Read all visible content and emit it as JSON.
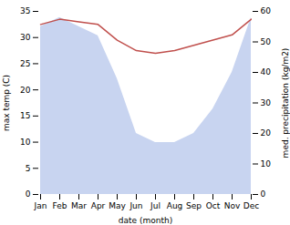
{
  "chart_data": {
    "type": "line",
    "xlabel": "date (month)",
    "ylabel": "max temp (C)",
    "y2label": "med. precipitation (kg/m2)",
    "categories": [
      "Jan",
      "Feb",
      "Mar",
      "Apr",
      "May",
      "Jun",
      "Jul",
      "Aug",
      "Sep",
      "Oct",
      "Nov",
      "Dec"
    ],
    "series": [
      {
        "type": "area",
        "axis": "y2",
        "color": "#c8d4f0",
        "values": [
          55,
          58,
          55,
          52,
          38,
          20,
          17,
          17,
          20,
          28,
          40,
          58
        ]
      },
      {
        "type": "line",
        "color": "#c0504d",
        "values": [
          32.5,
          33.5,
          33.0,
          32.5,
          29.5,
          27.5,
          27.0,
          27.5,
          28.5,
          29.5,
          30.5,
          33.5
        ]
      }
    ],
    "ylim": [
      0,
      35
    ],
    "yticks": [
      0,
      5,
      10,
      15,
      20,
      25,
      30,
      35
    ],
    "y2lim": [
      0,
      60
    ],
    "y2ticks": [
      0,
      10,
      20,
      30,
      40,
      50,
      60
    ],
    "grid": false
  }
}
